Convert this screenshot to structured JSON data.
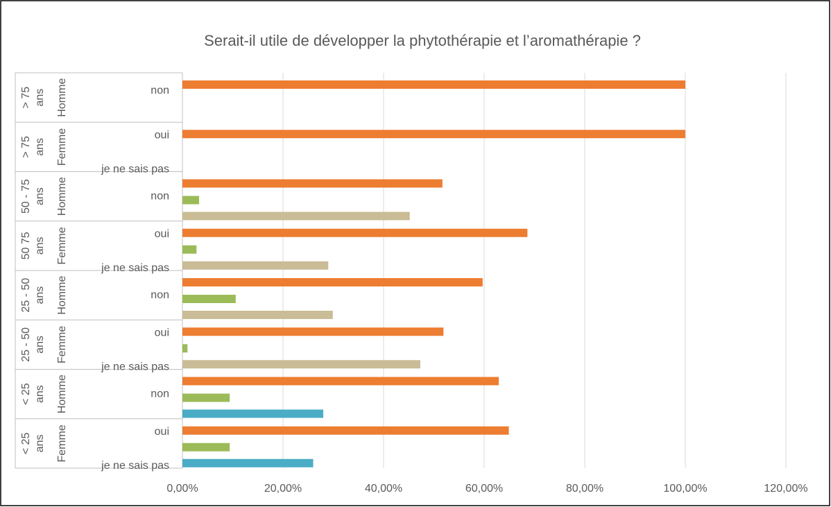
{
  "chart_data": {
    "type": "bar",
    "orientation": "horizontal",
    "title": "Serait-il utile de développer la phytothérapie et l’aromathérapie ?",
    "groups": [
      {
        "age": [
          "> 75",
          "ans"
        ],
        "sex": "Homme",
        "labels": [
          "non"
        ]
      },
      {
        "age": [
          "> 75",
          "ans"
        ],
        "sex": "Femme",
        "labels": [
          "oui",
          "je ne sais pas"
        ]
      },
      {
        "age": [
          "50 - 75",
          "ans"
        ],
        "sex": "Homme",
        "labels": [
          "non"
        ]
      },
      {
        "age": [
          "50 75",
          "ans"
        ],
        "sex": "Femme",
        "labels": [
          "oui",
          "je ne sais pas"
        ]
      },
      {
        "age": [
          "25 - 50",
          "ans"
        ],
        "sex": "Homme",
        "labels": [
          "non"
        ]
      },
      {
        "age": [
          "25 - 50",
          "ans"
        ],
        "sex": "Femme",
        "labels": [
          "oui",
          "je ne sais pas"
        ]
      },
      {
        "age": [
          "< 25",
          "ans"
        ],
        "sex": "Homme",
        "labels": [
          "non"
        ]
      },
      {
        "age": [
          "< 25",
          "ans"
        ],
        "sex": "Femme",
        "labels": [
          "oui",
          "je ne sais pas"
        ]
      }
    ],
    "series": [
      {
        "color": "#ED7D31",
        "slot": 0,
        "values": [
          100,
          100,
          51.7,
          68.6,
          59.7,
          51.9,
          62.9,
          64.9
        ]
      },
      {
        "color": "#9BBB59",
        "slot": 1,
        "values": [
          null,
          null,
          3.3,
          2.8,
          10.6,
          1,
          9.4,
          9.4
        ]
      },
      {
        "color": "#C9BC96",
        "slot": 2,
        "values": [
          null,
          null,
          45.2,
          29,
          29.9,
          47.3,
          null,
          null
        ]
      },
      {
        "color": "#4BACC6",
        "slot": 2,
        "values": [
          null,
          null,
          null,
          null,
          null,
          null,
          28,
          26
        ]
      }
    ],
    "xlim": [
      0,
      120
    ],
    "xticks": [
      {
        "value": 0,
        "label": "0,00%"
      },
      {
        "value": 20,
        "label": "20,00%"
      },
      {
        "value": 40,
        "label": "40,00%"
      },
      {
        "value": 60,
        "label": "60,00%"
      },
      {
        "value": 80,
        "label": "80,00%"
      },
      {
        "value": 100,
        "label": "100,00%"
      },
      {
        "value": 120,
        "label": "120,00%"
      }
    ],
    "grid": true
  }
}
